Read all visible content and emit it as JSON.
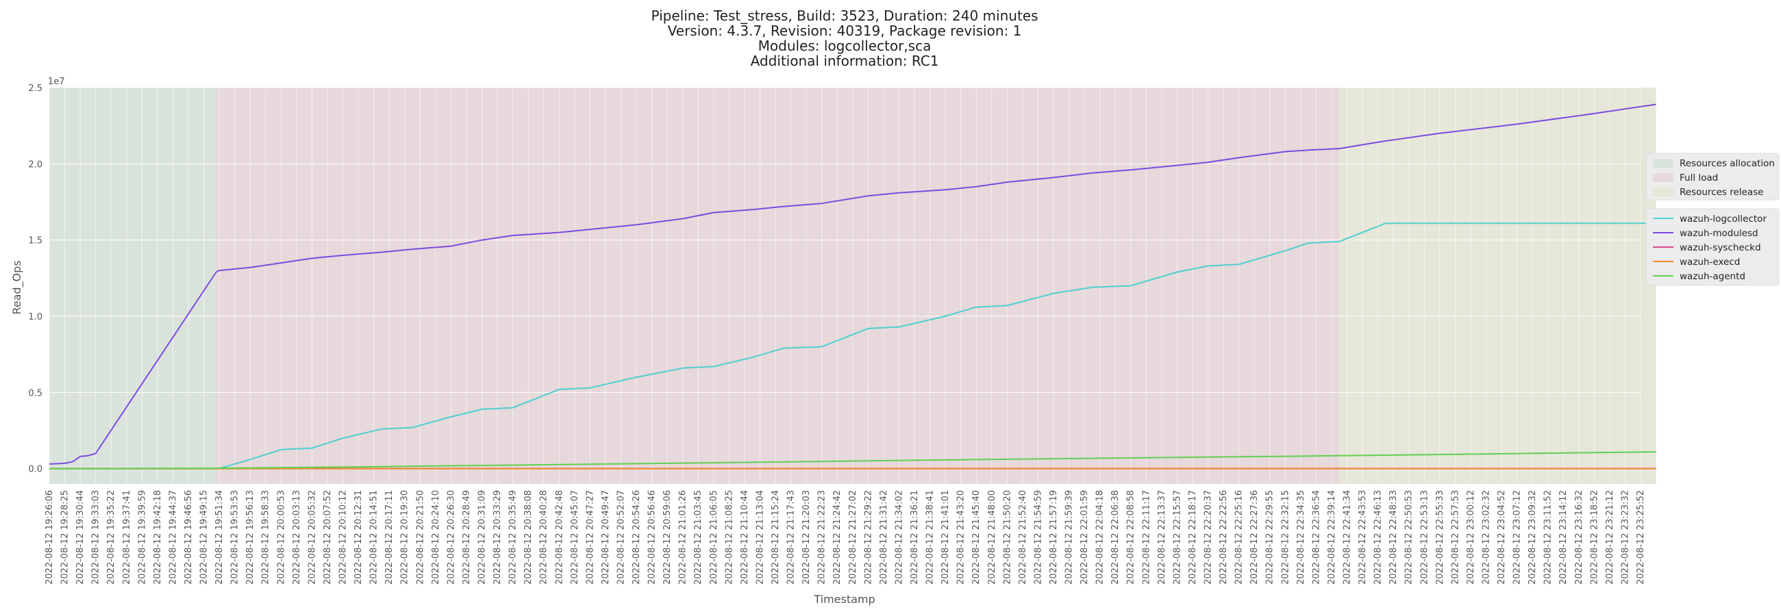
{
  "chart_data": {
    "type": "line",
    "title_lines": [
      "Pipeline: Test_stress, Build: 3523, Duration: 240 minutes",
      "Version: 4.3.7, Revision: 40319, Package revision: 1",
      "Modules: logcollector,sca",
      "Additional information: RC1"
    ],
    "xlabel": "Timestamp",
    "ylabel": "Read_Ops",
    "y_scale_label": "1e7",
    "ylim": [
      -1000000,
      25000000
    ],
    "y_ticks": [
      0,
      5000000,
      10000000,
      15000000,
      20000000,
      25000000
    ],
    "y_tick_labels": [
      "0.0",
      "0.5",
      "1.0",
      "1.5",
      "2.0",
      "2.5"
    ],
    "x_tick_labels": [
      "2022-08-12 19:26:06",
      "2022-08-12 19:28:25",
      "2022-08-12 19:30:44",
      "2022-08-12 19:33:03",
      "2022-08-12 19:35:22",
      "2022-08-12 19:37:41",
      "2022-08-12 19:39:59",
      "2022-08-12 19:42:18",
      "2022-08-12 19:44:37",
      "2022-08-12 19:46:56",
      "2022-08-12 19:49:15",
      "2022-08-12 19:51:34",
      "2022-08-12 19:53:53",
      "2022-08-12 19:56:13",
      "2022-08-12 19:58:33",
      "2022-08-12 20:00:53",
      "2022-08-12 20:03:13",
      "2022-08-12 20:05:32",
      "2022-08-12 20:07:52",
      "2022-08-12 20:10:12",
      "2022-08-12 20:12:31",
      "2022-08-12 20:14:51",
      "2022-08-12 20:17:11",
      "2022-08-12 20:19:30",
      "2022-08-12 20:21:50",
      "2022-08-12 20:24:10",
      "2022-08-12 20:26:30",
      "2022-08-12 20:28:49",
      "2022-08-12 20:31:09",
      "2022-08-12 20:33:29",
      "2022-08-12 20:35:49",
      "2022-08-12 20:38:08",
      "2022-08-12 20:40:28",
      "2022-08-12 20:42:48",
      "2022-08-12 20:45:07",
      "2022-08-12 20:47:27",
      "2022-08-12 20:49:47",
      "2022-08-12 20:52:07",
      "2022-08-12 20:54:26",
      "2022-08-12 20:56:46",
      "2022-08-12 20:59:06",
      "2022-08-12 21:01:26",
      "2022-08-12 21:03:45",
      "2022-08-12 21:06:05",
      "2022-08-12 21:08:25",
      "2022-08-12 21:10:44",
      "2022-08-12 21:13:04",
      "2022-08-12 21:15:24",
      "2022-08-12 21:17:43",
      "2022-08-12 21:20:03",
      "2022-08-12 21:22:23",
      "2022-08-12 21:24:42",
      "2022-08-12 21:27:02",
      "2022-08-12 21:29:22",
      "2022-08-12 21:31:42",
      "2022-08-12 21:34:02",
      "2022-08-12 21:36:21",
      "2022-08-12 21:38:41",
      "2022-08-12 21:41:01",
      "2022-08-12 21:43:20",
      "2022-08-12 21:45:40",
      "2022-08-12 21:48:00",
      "2022-08-12 21:50:20",
      "2022-08-12 21:52:40",
      "2022-08-12 21:54:59",
      "2022-08-12 21:57:19",
      "2022-08-12 21:59:39",
      "2022-08-12 22:01:59",
      "2022-08-12 22:04:18",
      "2022-08-12 22:06:38",
      "2022-08-12 22:08:58",
      "2022-08-12 22:11:17",
      "2022-08-12 22:13:37",
      "2022-08-12 22:15:57",
      "2022-08-12 22:18:17",
      "2022-08-12 22:20:37",
      "2022-08-12 22:22:56",
      "2022-08-12 22:25:16",
      "2022-08-12 22:27:36",
      "2022-08-12 22:29:55",
      "2022-08-12 22:32:15",
      "2022-08-12 22:34:35",
      "2022-08-12 22:36:54",
      "2022-08-12 22:39:14",
      "2022-08-12 22:41:34",
      "2022-08-12 22:43:53",
      "2022-08-12 22:46:13",
      "2022-08-12 22:48:33",
      "2022-08-12 22:50:53",
      "2022-08-12 22:53:13",
      "2022-08-12 22:55:33",
      "2022-08-12 22:57:53",
      "2022-08-12 23:00:12",
      "2022-08-12 23:02:32",
      "2022-08-12 23:04:52",
      "2022-08-12 23:07:12",
      "2022-08-12 23:09:32",
      "2022-08-12 23:11:52",
      "2022-08-12 23:14:12",
      "2022-08-12 23:16:32",
      "2022-08-12 23:18:52",
      "2022-08-12 23:21:12",
      "2022-08-12 23:23:32",
      "2022-08-12 23:25:52"
    ],
    "phases": [
      {
        "name": "Resources allocation",
        "start_tick": 0,
        "end_tick": 10.8,
        "color": "#d9e3dc"
      },
      {
        "name": "Full load",
        "start_tick": 10.8,
        "end_tick": 83.5,
        "color": "#e6d8db"
      },
      {
        "name": "Resources release",
        "start_tick": 83.5,
        "end_tick": 104,
        "color": "#e6e6d9"
      }
    ],
    "series": [
      {
        "name": "wazuh-logcollector",
        "color": "#4dd0cf",
        "points": [
          [
            0,
            0
          ],
          [
            10.8,
            0
          ],
          [
            11,
            20000
          ],
          [
            13,
            600000
          ],
          [
            15,
            1250000
          ],
          [
            17,
            1350000
          ],
          [
            19,
            2000000
          ],
          [
            21.5,
            2600000
          ],
          [
            23.5,
            2700000
          ],
          [
            26,
            3400000
          ],
          [
            28,
            3900000
          ],
          [
            30,
            4000000
          ],
          [
            33,
            5200000
          ],
          [
            35,
            5300000
          ],
          [
            38,
            6000000
          ],
          [
            41,
            6600000
          ],
          [
            43,
            6700000
          ],
          [
            45.5,
            7300000
          ],
          [
            47.5,
            7900000
          ],
          [
            50,
            8000000
          ],
          [
            53,
            9200000
          ],
          [
            55,
            9300000
          ],
          [
            58,
            10000000
          ],
          [
            60,
            10600000
          ],
          [
            62,
            10700000
          ],
          [
            65,
            11500000
          ],
          [
            67.5,
            11900000
          ],
          [
            70,
            12000000
          ],
          [
            73,
            12900000
          ],
          [
            75,
            13300000
          ],
          [
            77,
            13400000
          ],
          [
            80,
            14300000
          ],
          [
            81.5,
            14800000
          ],
          [
            83.5,
            14900000
          ],
          [
            86.5,
            16100000
          ],
          [
            104,
            16100000
          ]
        ]
      },
      {
        "name": "wazuh-modulesd",
        "color": "#7b4be0",
        "points": [
          [
            0,
            300000
          ],
          [
            1,
            350000
          ],
          [
            1.5,
            450000
          ],
          [
            2,
            800000
          ],
          [
            2.5,
            850000
          ],
          [
            3,
            1000000
          ],
          [
            10.8,
            12900000
          ],
          [
            11,
            13000000
          ],
          [
            13,
            13200000
          ],
          [
            15,
            13500000
          ],
          [
            17,
            13800000
          ],
          [
            19,
            14000000
          ],
          [
            21.5,
            14200000
          ],
          [
            23.5,
            14400000
          ],
          [
            26,
            14600000
          ],
          [
            28,
            15000000
          ],
          [
            30,
            15300000
          ],
          [
            33,
            15500000
          ],
          [
            35,
            15700000
          ],
          [
            38,
            16000000
          ],
          [
            41,
            16400000
          ],
          [
            43,
            16800000
          ],
          [
            45.5,
            17000000
          ],
          [
            47.5,
            17200000
          ],
          [
            50,
            17400000
          ],
          [
            53,
            17900000
          ],
          [
            55,
            18100000
          ],
          [
            58,
            18300000
          ],
          [
            60,
            18500000
          ],
          [
            62,
            18800000
          ],
          [
            65,
            19100000
          ],
          [
            67.5,
            19400000
          ],
          [
            70,
            19600000
          ],
          [
            73,
            19900000
          ],
          [
            75,
            20100000
          ],
          [
            77,
            20400000
          ],
          [
            80,
            20800000
          ],
          [
            81.5,
            20900000
          ],
          [
            83.5,
            21000000
          ],
          [
            86.5,
            21500000
          ],
          [
            90,
            22000000
          ],
          [
            95,
            22600000
          ],
          [
            100,
            23300000
          ],
          [
            104,
            23900000
          ]
        ]
      },
      {
        "name": "wazuh-syscheckd",
        "color": "#d94c8c",
        "points": [
          [
            0,
            10000
          ],
          [
            104,
            10000
          ]
        ]
      },
      {
        "name": "wazuh-execd",
        "color": "#ef8c2e",
        "points": [
          [
            0,
            0
          ],
          [
            104,
            0
          ]
        ]
      },
      {
        "name": "wazuh-agentd",
        "color": "#5fd04f",
        "points": [
          [
            0,
            0
          ],
          [
            10.8,
            30000
          ],
          [
            20,
            120000
          ],
          [
            40,
            350000
          ],
          [
            60,
            600000
          ],
          [
            83.5,
            850000
          ],
          [
            104,
            1100000
          ]
        ]
      }
    ],
    "legend_placement": "right",
    "grid": true
  }
}
